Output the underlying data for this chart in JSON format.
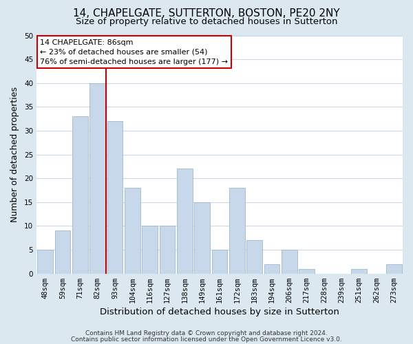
{
  "title": "14, CHAPELGATE, SUTTERTON, BOSTON, PE20 2NY",
  "subtitle": "Size of property relative to detached houses in Sutterton",
  "xlabel": "Distribution of detached houses by size in Sutterton",
  "ylabel": "Number of detached properties",
  "bar_labels": [
    "48sqm",
    "59sqm",
    "71sqm",
    "82sqm",
    "93sqm",
    "104sqm",
    "116sqm",
    "127sqm",
    "138sqm",
    "149sqm",
    "161sqm",
    "172sqm",
    "183sqm",
    "194sqm",
    "206sqm",
    "217sqm",
    "228sqm",
    "239sqm",
    "251sqm",
    "262sqm",
    "273sqm"
  ],
  "bar_values": [
    5,
    9,
    33,
    40,
    32,
    18,
    10,
    10,
    22,
    15,
    5,
    18,
    7,
    2,
    5,
    1,
    0,
    0,
    1,
    0,
    2
  ],
  "bar_color": "#c8d8eb",
  "bar_edge_color": "#a0b8cc",
  "vline_x": 3.5,
  "vline_color": "#cc0000",
  "ylim": [
    0,
    50
  ],
  "annotation_title": "14 CHAPELGATE: 86sqm",
  "annotation_line1": "← 23% of detached houses are smaller (54)",
  "annotation_line2": "76% of semi-detached houses are larger (177) →",
  "annotation_box_facecolor": "white",
  "annotation_box_edgecolor": "#cc0000",
  "footer1": "Contains HM Land Registry data © Crown copyright and database right 2024.",
  "footer2": "Contains public sector information licensed under the Open Government Licence v3.0.",
  "fig_facecolor": "#dce8f0",
  "axes_facecolor": "#ffffff",
  "grid_color": "#c8d8e8",
  "title_fontsize": 11,
  "subtitle_fontsize": 9.5,
  "xlabel_fontsize": 9.5,
  "ylabel_fontsize": 9,
  "tick_fontsize": 7.5,
  "footer_fontsize": 6.5
}
